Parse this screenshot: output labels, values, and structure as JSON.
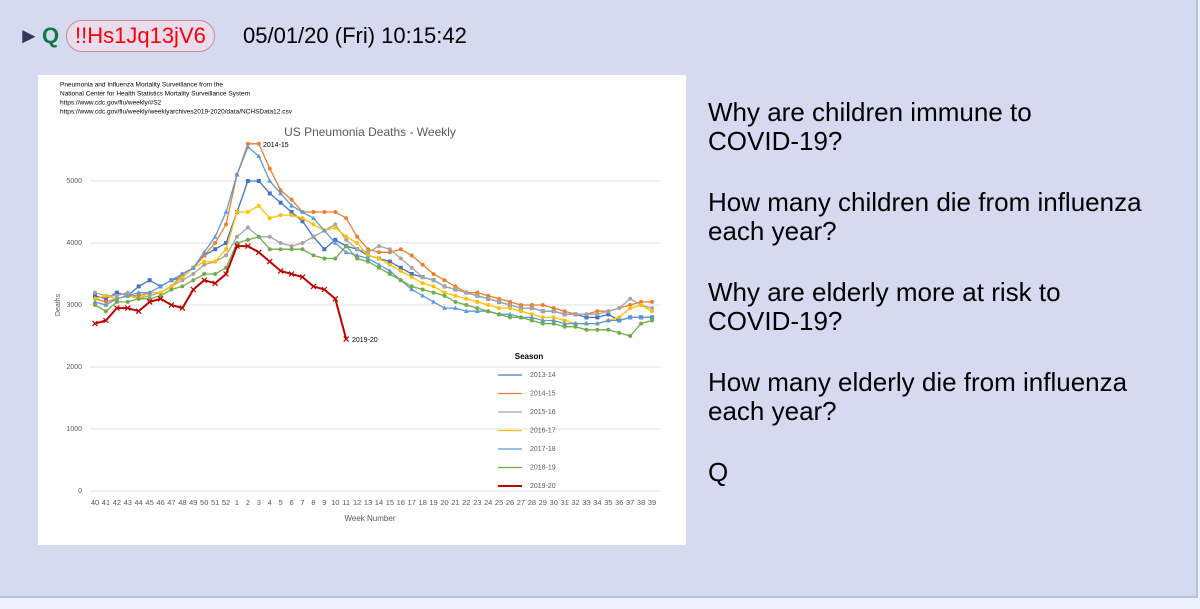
{
  "header": {
    "marker": "►",
    "name": "Q",
    "tripcode": "!!Hs1Jq13jV6",
    "datetime": "05/01/20 (Fri) 10:15:42"
  },
  "chart_data": {
    "type": "line",
    "source": [
      "Pneumonia and Influenza Mortality Surveillance from the",
      "National Center for Health Statistics Mortality Surveillance System",
      "https://www.cdc.gov/flu/weekly/#S2",
      "https://www.cdc.gov/flu/weekly/weeklyarchives2019-2020/data/NCHSData12.csv"
    ],
    "title": "US Pneumonia Deaths - Weekly",
    "y_label": "Deaths",
    "x_label": "Week Number",
    "legend_title": "Season",
    "annotations": [
      "2014-15",
      "2019-20"
    ],
    "categories": [
      "40",
      "41",
      "42",
      "43",
      "44",
      "45",
      "46",
      "47",
      "48",
      "49",
      "50",
      "51",
      "52",
      "1",
      "2",
      "3",
      "4",
      "5",
      "6",
      "7",
      "8",
      "9",
      "10",
      "11",
      "12",
      "13",
      "14",
      "15",
      "16",
      "17",
      "18",
      "19",
      "20",
      "21",
      "22",
      "23",
      "24",
      "25",
      "26",
      "27",
      "28",
      "29",
      "30",
      "31",
      "32",
      "33",
      "34",
      "35",
      "36",
      "37",
      "38",
      "39"
    ],
    "ylim": [
      0,
      6000
    ],
    "yticks": [
      0,
      1000,
      2000,
      3000,
      4000,
      5000
    ],
    "grid": true,
    "series": [
      {
        "name": "2013-14",
        "color": "#4472c4",
        "marker": "square",
        "values": [
          3150,
          3100,
          3200,
          3150,
          3300,
          3400,
          3300,
          3400,
          3450,
          3600,
          3800,
          3900,
          4000,
          4500,
          5000,
          5000,
          4800,
          4650,
          4500,
          4350,
          4100,
          3900,
          4050,
          3950,
          3900,
          3800,
          3750,
          3700,
          3600,
          3500,
          3450,
          3400,
          3300,
          3250,
          3200,
          3150,
          3100,
          3050,
          3000,
          2950,
          2950,
          2900,
          2900,
          2850,
          2850,
          2800,
          2800,
          2850,
          2750,
          2800,
          2800,
          2800
        ]
      },
      {
        "name": "2014-15",
        "color": "#ed7d31",
        "marker": "circle",
        "values": [
          3100,
          3050,
          3100,
          3150,
          3150,
          3200,
          3200,
          3300,
          3500,
          3600,
          3800,
          4000,
          4300,
          5100,
          5600,
          5600,
          5200,
          4850,
          4700,
          4500,
          4500,
          4500,
          4500,
          4400,
          4100,
          3900,
          3850,
          3850,
          3900,
          3800,
          3650,
          3500,
          3400,
          3300,
          3200,
          3200,
          3150,
          3100,
          3050,
          3000,
          3000,
          3000,
          2950,
          2900,
          2850,
          2850,
          2900,
          2900,
          2950,
          3000,
          3050,
          3050
        ]
      },
      {
        "name": "2015-16",
        "color": "#a5a5a5",
        "marker": "circle",
        "values": [
          3200,
          3150,
          3150,
          3200,
          3100,
          3150,
          3200,
          3300,
          3400,
          3500,
          3650,
          3700,
          3800,
          4100,
          4250,
          4100,
          4100,
          4000,
          3950,
          4000,
          4100,
          4200,
          4300,
          4050,
          3900,
          3850,
          3950,
          3900,
          3750,
          3600,
          3450,
          3400,
          3300,
          3250,
          3200,
          3150,
          3100,
          3050,
          3000,
          2950,
          2950,
          2900,
          2900,
          2850,
          2850,
          2850,
          2850,
          2900,
          2950,
          3100,
          3000,
          2950
        ]
      },
      {
        "name": "2016-17",
        "color": "#ffc000",
        "marker": "circle",
        "values": [
          3100,
          3150,
          3100,
          3150,
          3100,
          3200,
          3200,
          3300,
          3450,
          3600,
          3700,
          3700,
          3900,
          4500,
          4500,
          4600,
          4400,
          4450,
          4450,
          4400,
          4300,
          4200,
          4250,
          4100,
          4000,
          3800,
          3750,
          3650,
          3550,
          3450,
          3350,
          3300,
          3200,
          3150,
          3100,
          3050,
          3000,
          2950,
          2950,
          2900,
          2850,
          2800,
          2800,
          2750,
          2700,
          2700,
          2700,
          2750,
          2800,
          2950,
          3000,
          2900
        ]
      },
      {
        "name": "2017-18",
        "color": "#5b9bd5",
        "marker": "triangle",
        "values": [
          3050,
          3000,
          3100,
          3150,
          3200,
          3200,
          3300,
          3400,
          3500,
          3600,
          3850,
          4100,
          4500,
          5100,
          5550,
          5400,
          5000,
          4800,
          4600,
          4500,
          4400,
          4200,
          4000,
          3850,
          3800,
          3750,
          3650,
          3550,
          3400,
          3250,
          3150,
          3050,
          2950,
          2950,
          2900,
          2900,
          2900,
          2850,
          2850,
          2800,
          2800,
          2750,
          2750,
          2700,
          2700,
          2700,
          2700,
          2750,
          2750,
          2800,
          2800,
          2800
        ]
      },
      {
        "name": "2018-19",
        "color": "#70ad47",
        "marker": "circle",
        "values": [
          3000,
          2900,
          3050,
          3050,
          3100,
          3100,
          3150,
          3250,
          3300,
          3400,
          3500,
          3500,
          3600,
          4000,
          4050,
          4100,
          3900,
          3900,
          3900,
          3900,
          3800,
          3750,
          3750,
          3950,
          3750,
          3700,
          3600,
          3500,
          3400,
          3300,
          3250,
          3200,
          3150,
          3050,
          3000,
          2950,
          2900,
          2850,
          2800,
          2800,
          2750,
          2700,
          2700,
          2650,
          2650,
          2600,
          2600,
          2600,
          2550,
          2500,
          2700,
          2750
        ]
      },
      {
        "name": "2019-20",
        "color": "#c00000",
        "marker": "x",
        "values": [
          2700,
          2750,
          2950,
          2950,
          2900,
          3050,
          3100,
          3000,
          2950,
          3250,
          3400,
          3350,
          3500,
          3950,
          3950,
          3850,
          3700,
          3550,
          3500,
          3450,
          3300,
          3250,
          3100,
          2450,
          null,
          null,
          null,
          null,
          null,
          null,
          null,
          null,
          null,
          null,
          null,
          null,
          null,
          null,
          null,
          null,
          null,
          null,
          null,
          null,
          null,
          null,
          null,
          null,
          null,
          null,
          null,
          null
        ]
      }
    ]
  },
  "message": {
    "lines": [
      "Why are children immune to",
      "COVID-19?",
      "How many children die from influenza",
      "each year?",
      "Why are elderly more at risk to",
      "COVID-19?",
      "How many elderly die from influenza",
      "each year?",
      "Q"
    ]
  }
}
